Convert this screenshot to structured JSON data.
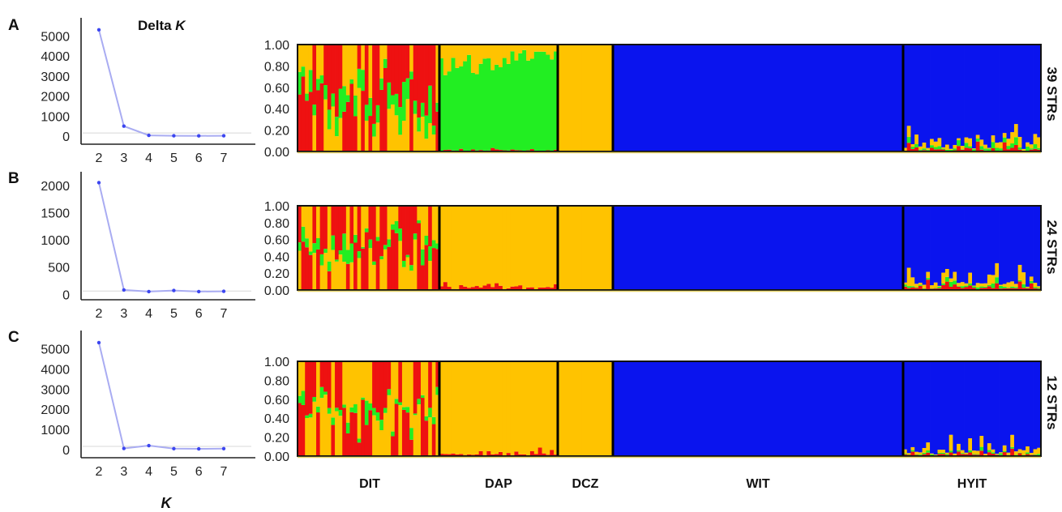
{
  "figure": {
    "panels": [
      "A",
      "B",
      "C"
    ],
    "str_labels": [
      "39 STRs",
      "24 STRs",
      "12 STRs"
    ],
    "delta_k_title": "Delta ",
    "delta_k_title_italic": "K",
    "x_title": "K",
    "populations": [
      "DIT",
      "DAP",
      "DCZ",
      "WIT",
      "HYIT"
    ],
    "colors": {
      "red": "#ee1111",
      "green": "#22ee22",
      "yellow": "#ffc300",
      "blue": "#0a14ee",
      "line": "#a9acf2",
      "point": "#3c46f0"
    }
  },
  "chart_data": [
    {
      "type": "line",
      "title": "Delta K",
      "xlabel": "",
      "ylabel": "",
      "x": [
        2,
        3,
        4,
        5,
        6,
        7
      ],
      "series": [
        {
          "values": [
            5300,
            500,
            40,
            20,
            15,
            20
          ]
        }
      ],
      "yticks": [
        0,
        1000,
        2000,
        3000,
        4000,
        5000
      ],
      "ylim": [
        -400,
        5900
      ],
      "grid": false
    },
    {
      "type": "line",
      "xlabel": "",
      "ylabel": "",
      "x": [
        2,
        3,
        4,
        5,
        6,
        7
      ],
      "series": [
        {
          "values": [
            2050,
            80,
            50,
            70,
            50,
            55
          ]
        }
      ],
      "yticks": [
        0,
        500,
        1000,
        1500,
        2000
      ],
      "ylim": [
        -100,
        2250
      ],
      "grid": false
    },
    {
      "type": "line",
      "xlabel": "K",
      "ylabel": "",
      "x": [
        2,
        3,
        4,
        5,
        6,
        7
      ],
      "series": [
        {
          "values": [
            5300,
            60,
            200,
            50,
            40,
            50
          ]
        }
      ],
      "yticks": [
        0,
        1000,
        2000,
        3000,
        4000,
        5000
      ],
      "ylim": [
        -400,
        5900
      ],
      "grid": false
    },
    {
      "type": "bar",
      "stacked": true,
      "description_label": "39 STRs",
      "yticks": [
        "1.00",
        "0.80",
        "0.60",
        "0.40",
        "0.20",
        "0.00"
      ],
      "ylim": [
        0,
        1
      ],
      "categories": [
        "DIT",
        "DAP",
        "DCZ",
        "WIT",
        "HYIT"
      ],
      "composition": [
        {
          "group": "DIT",
          "individuals": 38,
          "red": 0.55,
          "green": 0.15,
          "yellow": 0.3,
          "blue": 0.0
        },
        {
          "group": "DAP",
          "individuals": 30,
          "red": 0.01,
          "green": 0.86,
          "yellow": 0.13,
          "blue": 0.0
        },
        {
          "group": "DCZ",
          "individuals": 14,
          "red": 0.0,
          "green": 0.0,
          "yellow": 1.0,
          "blue": 0.0
        },
        {
          "group": "WIT",
          "individuals": 74,
          "red": 0.0,
          "green": 0.0,
          "yellow": 0.0,
          "blue": 1.0
        },
        {
          "group": "HYIT",
          "individuals": 36,
          "red": 0.02,
          "green": 0.02,
          "yellow": 0.04,
          "blue": 0.92
        }
      ]
    },
    {
      "type": "bar",
      "stacked": true,
      "description_label": "24 STRs",
      "yticks": [
        "1.00",
        "0.80",
        "0.60",
        "0.40",
        "0.20",
        "0.00"
      ],
      "ylim": [
        0,
        1
      ],
      "categories": [
        "DIT",
        "DAP",
        "DCZ",
        "WIT",
        "HYIT"
      ],
      "composition": [
        {
          "group": "DIT",
          "individuals": 38,
          "red": 0.5,
          "green": 0.1,
          "yellow": 0.4,
          "blue": 0.0
        },
        {
          "group": "DAP",
          "individuals": 30,
          "red": 0.03,
          "green": 0.0,
          "yellow": 0.97,
          "blue": 0.0
        },
        {
          "group": "DCZ",
          "individuals": 14,
          "red": 0.0,
          "green": 0.0,
          "yellow": 1.0,
          "blue": 0.0
        },
        {
          "group": "WIT",
          "individuals": 74,
          "red": 0.0,
          "green": 0.0,
          "yellow": 0.0,
          "blue": 1.0
        },
        {
          "group": "HYIT",
          "individuals": 36,
          "red": 0.03,
          "green": 0.02,
          "yellow": 0.05,
          "blue": 0.9
        }
      ]
    },
    {
      "type": "bar",
      "stacked": true,
      "description_label": "12 STRs",
      "yticks": [
        "1.00",
        "0.80",
        "0.60",
        "0.40",
        "0.20",
        "0.00"
      ],
      "ylim": [
        0,
        1
      ],
      "categories": [
        "DIT",
        "DAP",
        "DCZ",
        "WIT",
        "HYIT"
      ],
      "composition": [
        {
          "group": "DIT",
          "individuals": 38,
          "red": 0.45,
          "green": 0.07,
          "yellow": 0.48,
          "blue": 0.0
        },
        {
          "group": "DAP",
          "individuals": 30,
          "red": 0.02,
          "green": 0.0,
          "yellow": 0.98,
          "blue": 0.0
        },
        {
          "group": "DCZ",
          "individuals": 14,
          "red": 0.0,
          "green": 0.0,
          "yellow": 1.0,
          "blue": 0.0
        },
        {
          "group": "WIT",
          "individuals": 74,
          "red": 0.0,
          "green": 0.0,
          "yellow": 0.0,
          "blue": 1.0
        },
        {
          "group": "HYIT",
          "individuals": 36,
          "red": 0.02,
          "green": 0.01,
          "yellow": 0.03,
          "blue": 0.94
        }
      ]
    }
  ]
}
